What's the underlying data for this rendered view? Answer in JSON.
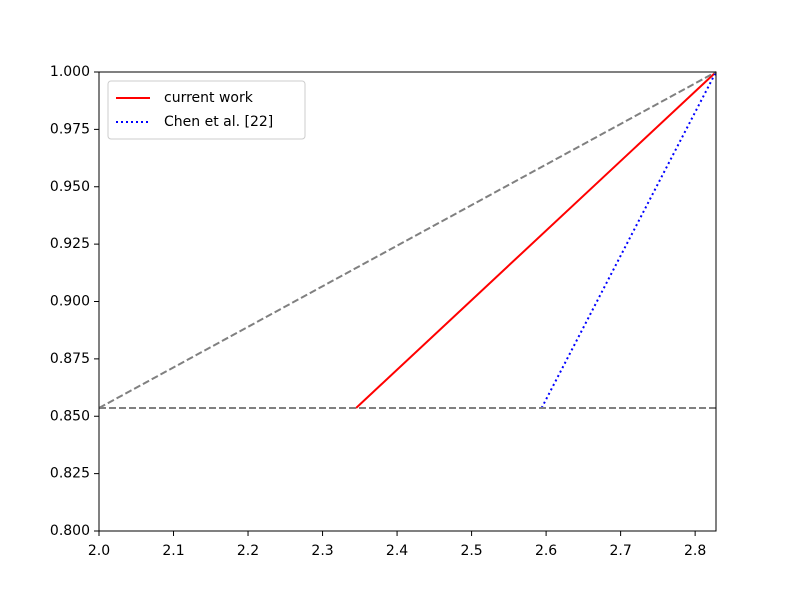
{
  "chart_data": {
    "type": "line",
    "series": [
      {
        "name": "current work",
        "color": "#ff0000",
        "style": "solid",
        "x": [
          2.345,
          2.828
        ],
        "values": [
          0.8536,
          1.0
        ]
      },
      {
        "name": "Chen et al. [22]",
        "color": "#0000ff",
        "style": "dotted",
        "x": [
          2.594,
          2.828
        ],
        "values": [
          0.8536,
          1.0
        ]
      },
      {
        "color": "#808080",
        "style": "dashed",
        "x": [
          2.0,
          2.828
        ],
        "values": [
          0.8536,
          1.0
        ]
      },
      {
        "color": "#808080",
        "style": "dashed",
        "x": [
          2.0,
          2.828
        ],
        "values": [
          0.8536,
          0.8536
        ]
      }
    ],
    "xlim": [
      2.0,
      2.828
    ],
    "ylim": [
      0.8,
      1.0
    ],
    "xticks": [
      {
        "value": 2.0,
        "label": "2.0"
      },
      2.1,
      2.2,
      2.3,
      2.4,
      2.5,
      2.6,
      2.7,
      2.8
    ],
    "yticks": [
      {
        "value": 0.8,
        "label": "0.800"
      },
      0.825,
      {
        "value": 0.85,
        "label": "0.850"
      },
      0.875,
      {
        "value": 0.9,
        "label": "0.900"
      },
      0.925,
      {
        "value": 0.95,
        "label": "0.950"
      },
      0.975,
      {
        "value": 1.0,
        "label": "1.000"
      }
    ],
    "grid": false,
    "legend": "upper left"
  }
}
